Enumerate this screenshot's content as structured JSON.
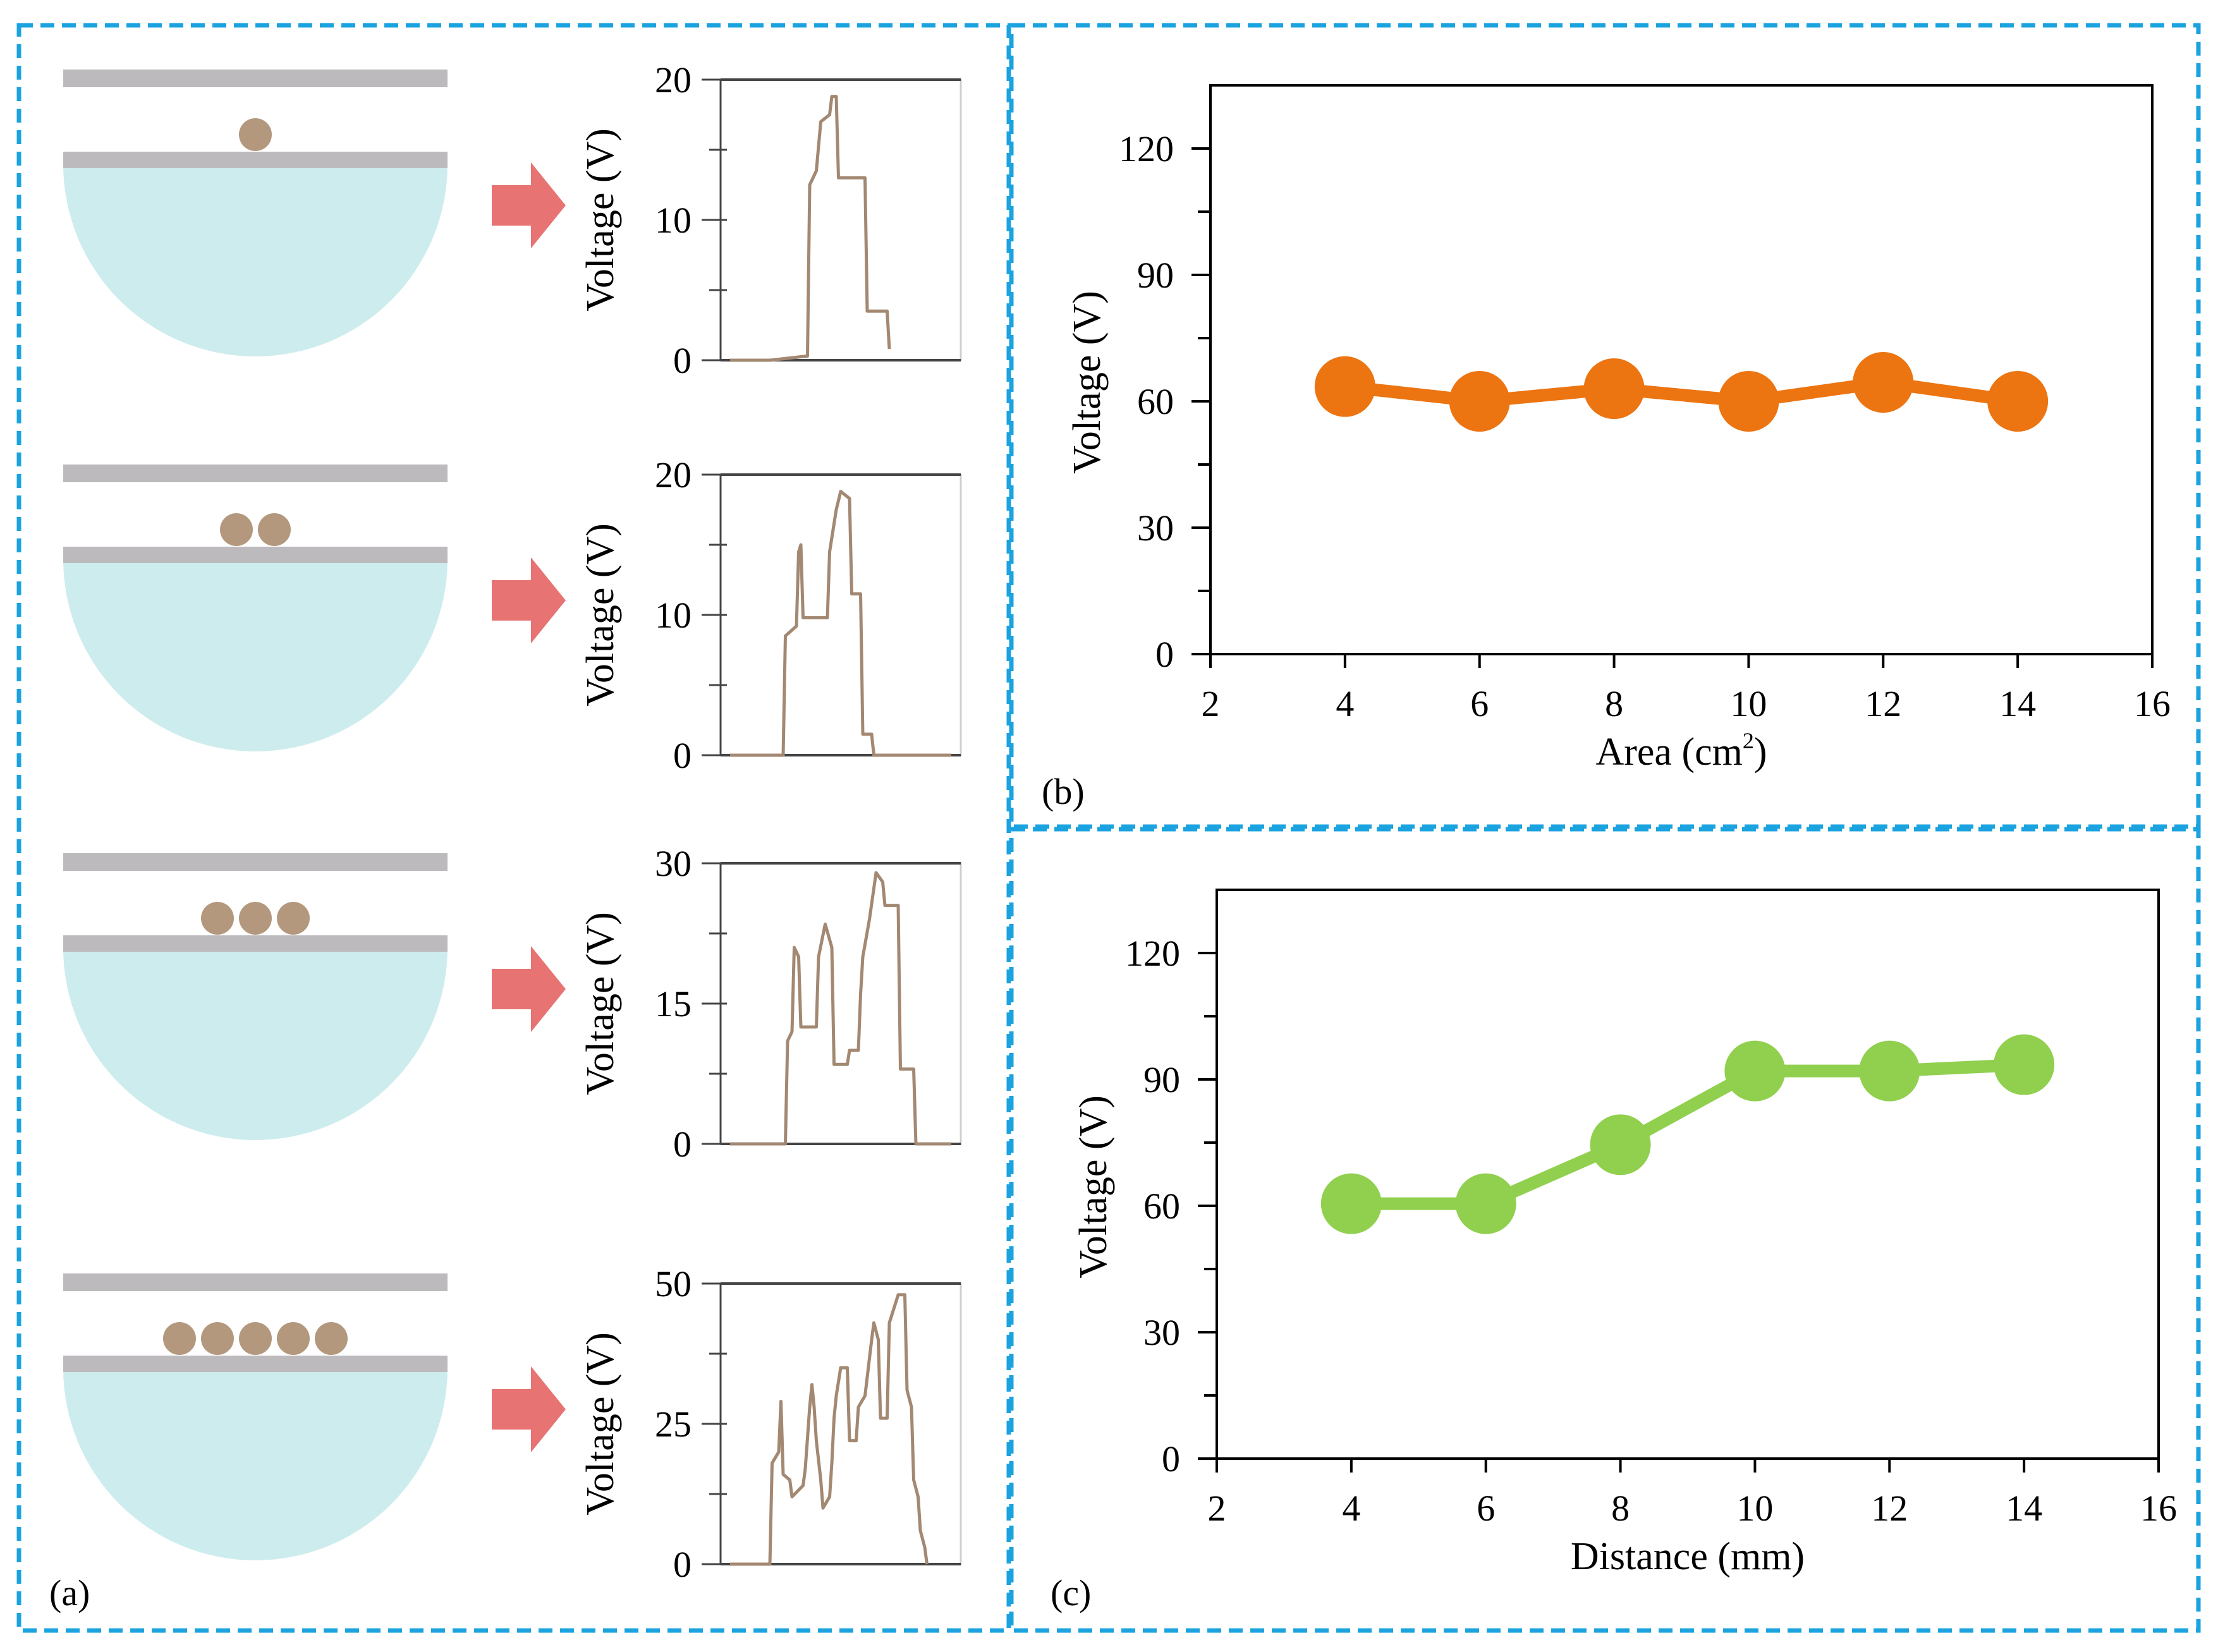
{
  "panel_labels": {
    "a": "(a)",
    "b": "(b)",
    "c": "(c)"
  },
  "colors": {
    "border": "#1ba3df",
    "plate": "#bdbabd",
    "hemisphere": "#cdeced",
    "particle": "#b3987e",
    "arrow": "#e87373",
    "trace": "#a38872",
    "series_b": "#ec7411",
    "series_c": "#90d04e"
  },
  "panel_a": {
    "rows": [
      {
        "particles": 1,
        "ylabel": "Voltage (V)",
        "yticks": [
          0,
          10,
          20
        ],
        "ymax": 20,
        "trace": [
          [
            0,
            0
          ],
          [
            0.18,
            0
          ],
          [
            0.35,
            0.3
          ],
          [
            0.36,
            12.5
          ],
          [
            0.39,
            13.5
          ],
          [
            0.41,
            17
          ],
          [
            0.45,
            17.5
          ],
          [
            0.46,
            18.8
          ],
          [
            0.48,
            18.8
          ],
          [
            0.49,
            13
          ],
          [
            0.61,
            13
          ],
          [
            0.62,
            3.5
          ],
          [
            0.71,
            3.5
          ],
          [
            0.72,
            0.8
          ]
        ]
      },
      {
        "particles": 2,
        "ylabel": "Voltage (V)",
        "yticks": [
          0,
          10,
          20
        ],
        "ymax": 20,
        "trace": [
          [
            0,
            0
          ],
          [
            0.24,
            0
          ],
          [
            0.25,
            8.5
          ],
          [
            0.3,
            9.2
          ],
          [
            0.31,
            14.5
          ],
          [
            0.32,
            15
          ],
          [
            0.33,
            9.8
          ],
          [
            0.44,
            9.8
          ],
          [
            0.45,
            14.5
          ],
          [
            0.47,
            16.5
          ],
          [
            0.48,
            17.5
          ],
          [
            0.5,
            18.8
          ],
          [
            0.54,
            18.3
          ],
          [
            0.55,
            11.5
          ],
          [
            0.59,
            11.5
          ],
          [
            0.6,
            1.5
          ],
          [
            0.64,
            1.5
          ],
          [
            0.65,
            0
          ],
          [
            1,
            0
          ]
        ]
      },
      {
        "particles": 3,
        "ylabel": "Voltage (V)",
        "yticks": [
          0,
          15,
          30
        ],
        "ymax": 30,
        "trace": [
          [
            0,
            0
          ],
          [
            0.25,
            0
          ],
          [
            0.26,
            11
          ],
          [
            0.28,
            12
          ],
          [
            0.29,
            21
          ],
          [
            0.31,
            20
          ],
          [
            0.32,
            12.5
          ],
          [
            0.39,
            12.5
          ],
          [
            0.4,
            20
          ],
          [
            0.43,
            23.5
          ],
          [
            0.46,
            21
          ],
          [
            0.47,
            8.5
          ],
          [
            0.53,
            8.5
          ],
          [
            0.54,
            10
          ],
          [
            0.58,
            10
          ],
          [
            0.59,
            16
          ],
          [
            0.6,
            20
          ],
          [
            0.63,
            24
          ],
          [
            0.66,
            29
          ],
          [
            0.69,
            28
          ],
          [
            0.7,
            25.5
          ],
          [
            0.76,
            25.5
          ],
          [
            0.77,
            8
          ],
          [
            0.83,
            8
          ],
          [
            0.84,
            0
          ],
          [
            1,
            0
          ]
        ]
      },
      {
        "particles": 5,
        "ylabel": "Voltage (V)",
        "yticks": [
          0,
          25,
          50
        ],
        "ymax": 50,
        "trace": [
          [
            0,
            0
          ],
          [
            0.18,
            0
          ],
          [
            0.19,
            18
          ],
          [
            0.22,
            20
          ],
          [
            0.23,
            29
          ],
          [
            0.24,
            16
          ],
          [
            0.27,
            15
          ],
          [
            0.28,
            12
          ],
          [
            0.33,
            14
          ],
          [
            0.34,
            17
          ],
          [
            0.36,
            28
          ],
          [
            0.37,
            32
          ],
          [
            0.38,
            28
          ],
          [
            0.39,
            22
          ],
          [
            0.41,
            15
          ],
          [
            0.42,
            10
          ],
          [
            0.45,
            12
          ],
          [
            0.46,
            18
          ],
          [
            0.47,
            26
          ],
          [
            0.48,
            30
          ],
          [
            0.5,
            35
          ],
          [
            0.53,
            35
          ],
          [
            0.54,
            22
          ],
          [
            0.57,
            22
          ],
          [
            0.58,
            28
          ],
          [
            0.61,
            30
          ],
          [
            0.64,
            40
          ],
          [
            0.65,
            43
          ],
          [
            0.67,
            40
          ],
          [
            0.68,
            26
          ],
          [
            0.71,
            26
          ],
          [
            0.72,
            43
          ],
          [
            0.76,
            48
          ],
          [
            0.79,
            48
          ],
          [
            0.8,
            31
          ],
          [
            0.82,
            28
          ],
          [
            0.83,
            15
          ],
          [
            0.85,
            12
          ],
          [
            0.86,
            6
          ],
          [
            0.88,
            3
          ],
          [
            0.89,
            0
          ]
        ]
      }
    ]
  },
  "chart_data": [
    {
      "type": "line",
      "panel": "b",
      "title": "",
      "xlabel": "Area (cm",
      "xlabel_sup": "2",
      "xlabel_end": ")",
      "ylabel": "Voltage (V)",
      "xlim": [
        2,
        16
      ],
      "ylim": [
        0,
        135
      ],
      "xticks": [
        2,
        4,
        6,
        8,
        10,
        12,
        14,
        16
      ],
      "yticks": [
        0,
        30,
        60,
        90,
        120
      ],
      "series": [
        {
          "name": "Area",
          "x": [
            4,
            6,
            8,
            10,
            12,
            14
          ],
          "y": [
            63.5,
            60,
            63,
            60,
            64.5,
            60
          ]
        }
      ]
    },
    {
      "type": "line",
      "panel": "c",
      "title": "",
      "xlabel": "Distance (mm)",
      "ylabel": "Voltage (V)",
      "xlim": [
        2,
        16
      ],
      "ylim": [
        0,
        135
      ],
      "xticks": [
        2,
        4,
        6,
        8,
        10,
        12,
        14,
        16
      ],
      "yticks": [
        0,
        30,
        60,
        90,
        120
      ],
      "series": [
        {
          "name": "Distance",
          "x": [
            4,
            6,
            8,
            10,
            12,
            14
          ],
          "y": [
            60.5,
            60.5,
            74.5,
            92,
            92,
            93.5
          ]
        }
      ]
    }
  ]
}
